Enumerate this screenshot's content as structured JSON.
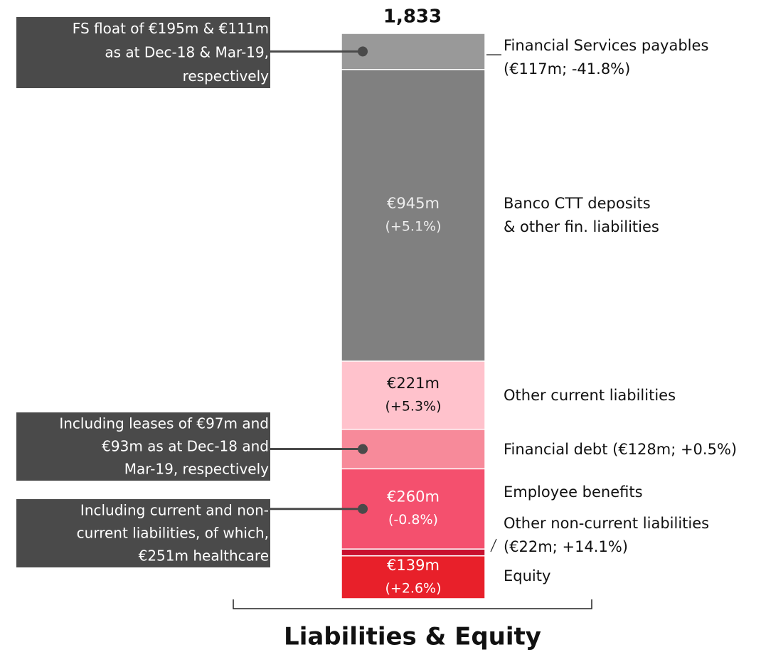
{
  "chart_data": {
    "type": "stacked-bar",
    "title": "Liabilities & Equity",
    "total_label": "1,833",
    "series": [
      {
        "label_lines": [
          "Equity"
        ],
        "color": "#e8202a",
        "values": [
          139
        ],
        "value_labels": [
          "€139m"
        ],
        "changes": [
          "(+2.6%)"
        ],
        "label_color": "#ffffff"
      },
      {
        "label_lines": [
          "Other non-current liabilities",
          "(€22m; +14.1%)"
        ],
        "color": "#c8102e",
        "values": [
          22
        ]
      },
      {
        "label_lines": [
          "Employee benefits"
        ],
        "color": "#f4506e",
        "values": [
          260
        ],
        "value_labels": [
          "€260m"
        ],
        "changes": [
          "(-0.8%)"
        ],
        "label_color": "#ffffff"
      },
      {
        "label_lines": [
          "Financial debt  (€128m; +0.5%)"
        ],
        "color": "#f78a9a",
        "values": [
          128
        ]
      },
      {
        "label_lines": [
          "Other current liabilities"
        ],
        "color": "#ffc2cc",
        "values": [
          221
        ],
        "value_labels": [
          "€221m"
        ],
        "changes": [
          "(+5.3%)"
        ],
        "label_color": "#111111"
      },
      {
        "label_lines": [
          "Banco CTT deposits",
          "& other fin. liabilities"
        ],
        "color": "#808080",
        "values": [
          945
        ],
        "value_labels": [
          "€945m"
        ],
        "changes": [
          "(+5.1%)"
        ],
        "label_color": "#eeeeee"
      },
      {
        "label_lines": [
          "Financial Services payables",
          "(€117m; -41.8%)"
        ],
        "color": "#999999",
        "values": [
          117
        ]
      }
    ],
    "annotations": [
      {
        "series": 6,
        "lines": [
          "FS float of €195m & €111m",
          "as at Dec-18 & Mar-19,",
          "respectively"
        ]
      },
      {
        "series": 3,
        "lines": [
          "Including leases of €97m and",
          "€93m as at Dec-18 and",
          "Mar-19, respectively"
        ]
      },
      {
        "series": 2,
        "lines": [
          "Including current and non-",
          "current liabilities, of which,",
          "€251m healthcare"
        ]
      }
    ]
  }
}
